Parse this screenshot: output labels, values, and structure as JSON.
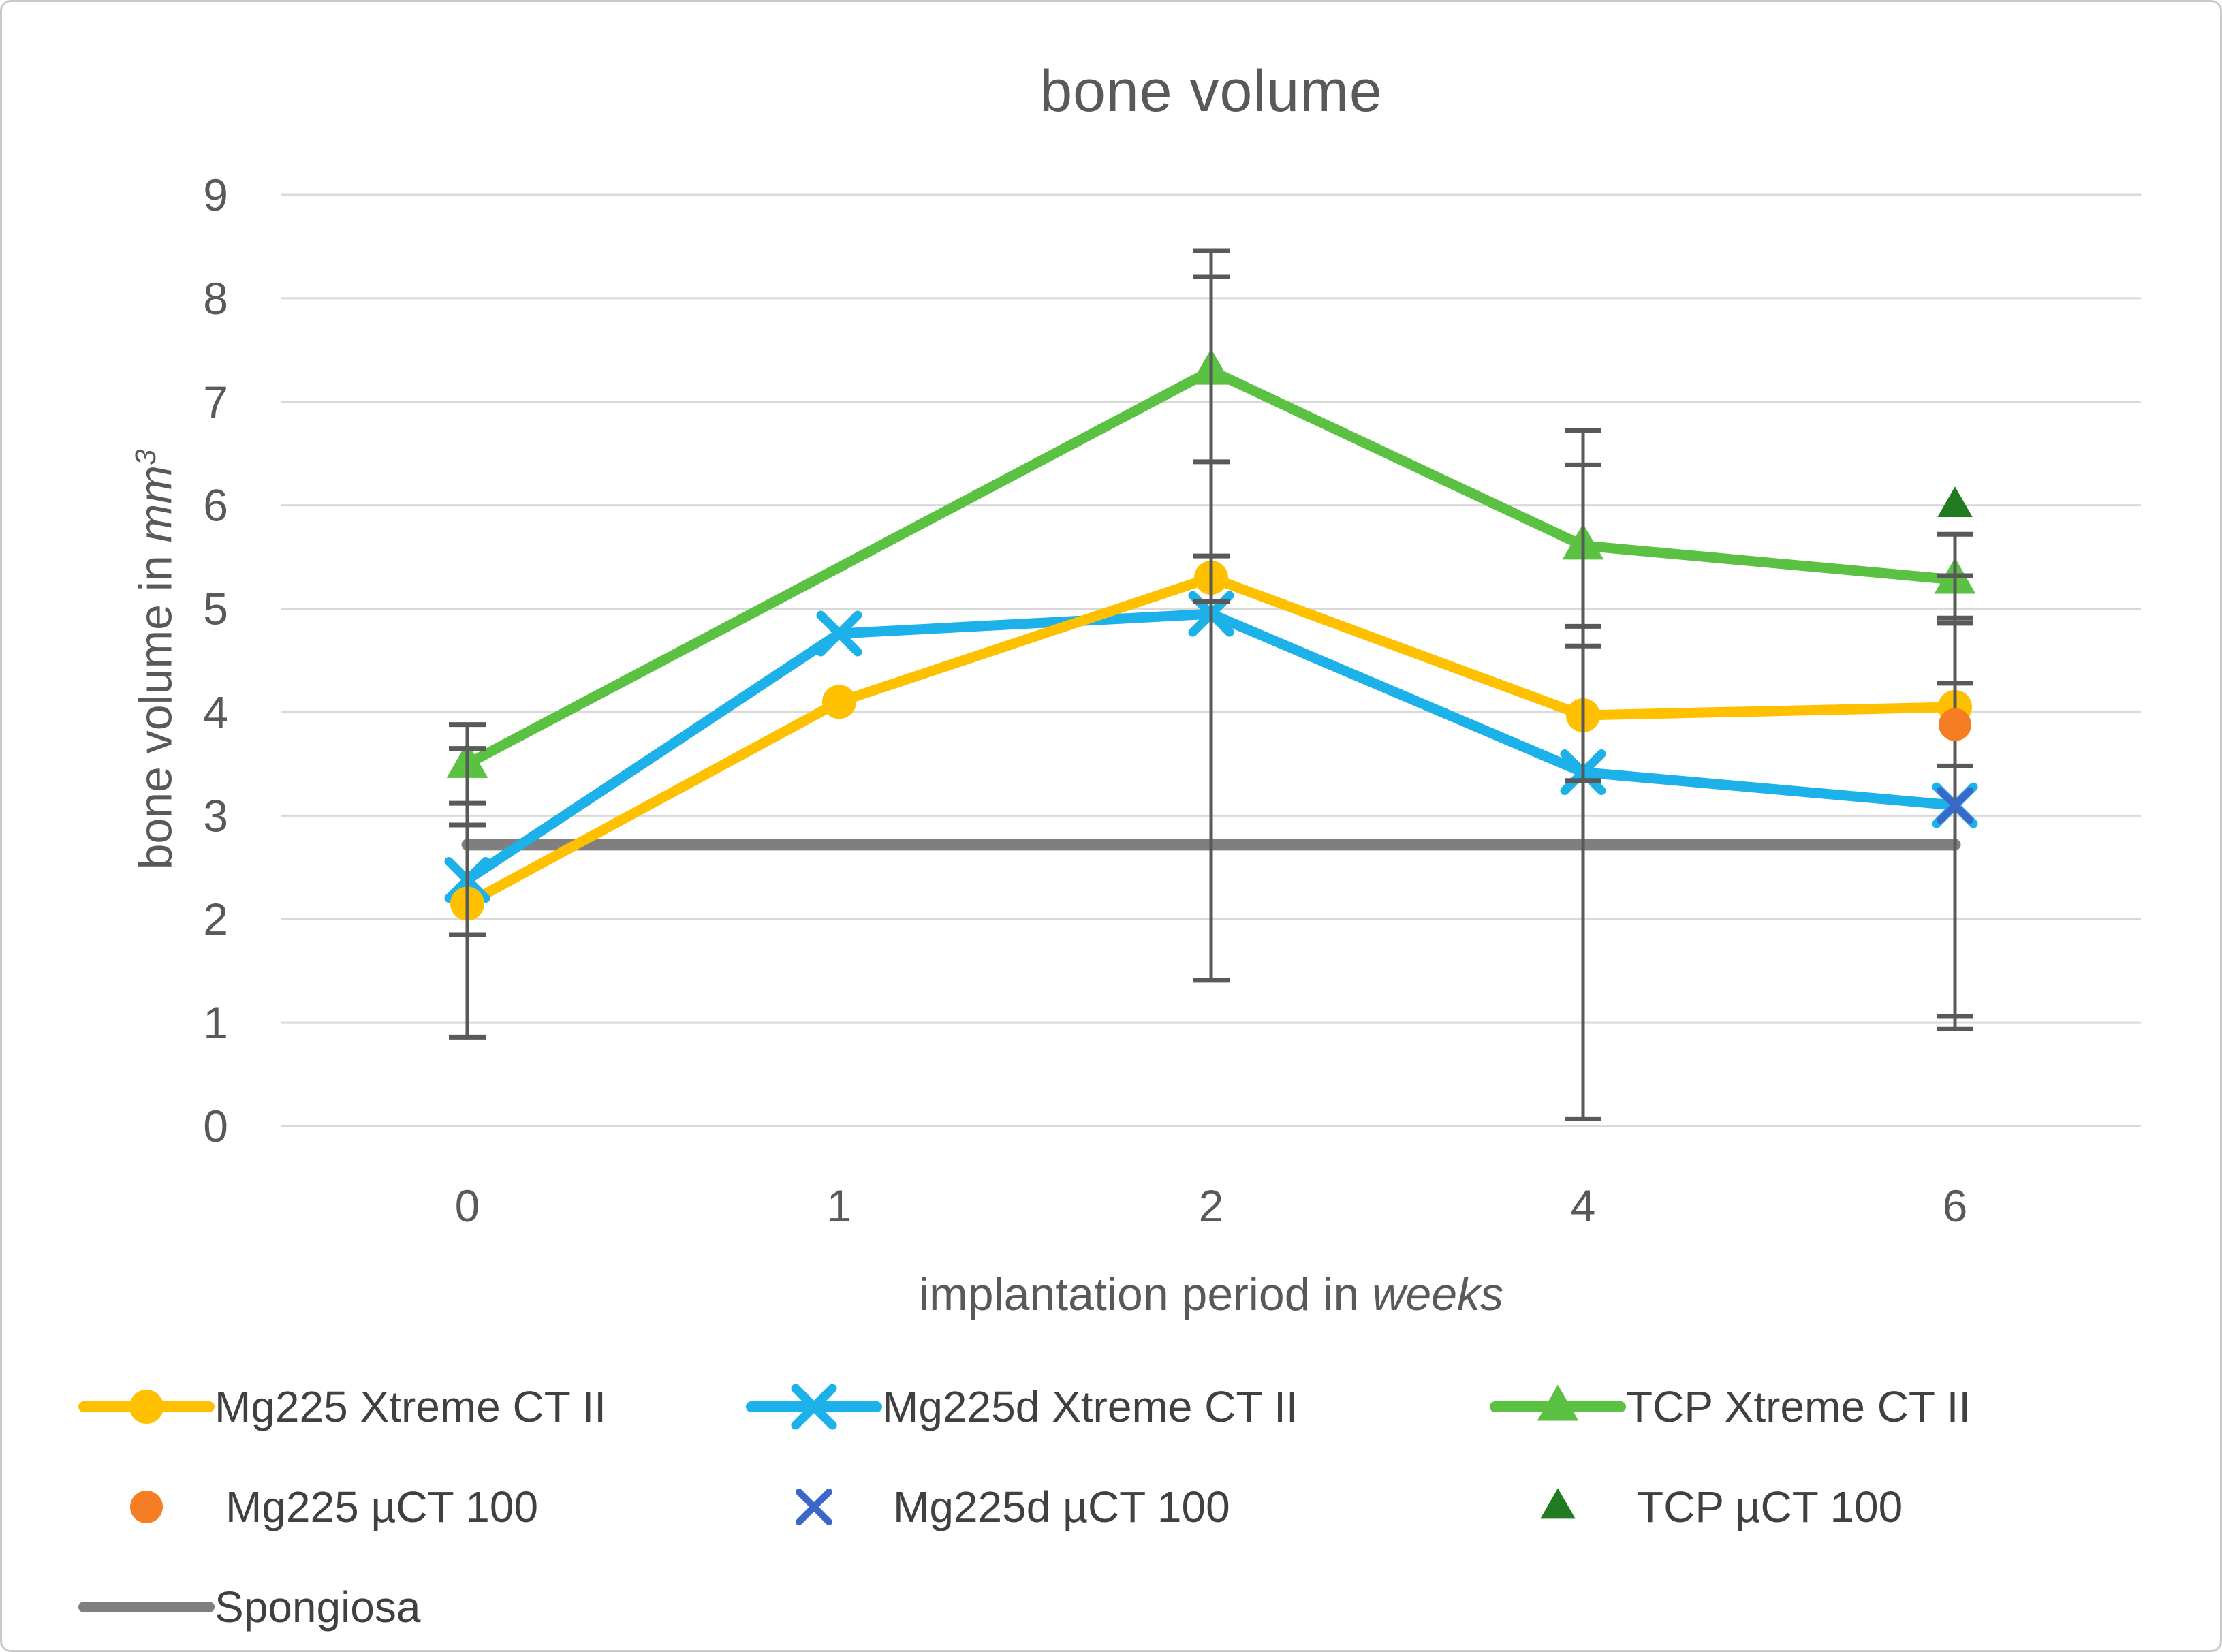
{
  "chart_data": {
    "type": "line",
    "title": "bone volume",
    "xlabel": "implantation period in weeks",
    "ylabel": "bone volume in mm³",
    "x_categories": [
      0,
      1,
      2,
      4,
      6
    ],
    "ylim": [
      0,
      9
    ],
    "y_ticks": [
      0,
      1,
      2,
      3,
      4,
      5,
      6,
      7,
      8,
      9
    ],
    "grid": true,
    "legend_position": "bottom",
    "series": [
      {
        "name": "Mg225 Xtreme CT II",
        "marker": "circle",
        "draw_line": true,
        "color_key": "mg225",
        "x": [
          0,
          1,
          2,
          4,
          6
        ],
        "y": [
          2.15,
          4.1,
          5.3,
          3.97,
          4.05
        ],
        "error_bars": [
          {
            "x": 0,
            "lo": 0.86,
            "hi": 3.65
          },
          {
            "x": 2,
            "lo": 5.07,
            "hi": 5.51
          },
          {
            "x": 4,
            "lo": 3.34,
            "hi": 4.64
          },
          {
            "x": 6,
            "lo": 1.06,
            "hi": 4.91
          }
        ]
      },
      {
        "name": "Mg225d Xtreme CT II",
        "marker": "x",
        "draw_line": true,
        "color_key": "mg225d",
        "x": [
          0,
          1,
          2,
          4,
          6
        ],
        "y": [
          2.38,
          4.76,
          4.95,
          3.42,
          3.1
        ],
        "error_bars": [
          {
            "x": 0,
            "lo": 1.85,
            "hi": 2.91
          },
          {
            "x": 2,
            "lo": 1.41,
            "hi": 8.46
          },
          {
            "x": 4,
            "lo": 0.07,
            "hi": 6.72
          },
          {
            "x": 6,
            "lo": 0.94,
            "hi": 5.32
          }
        ]
      },
      {
        "name": "TCP Xtreme CT II",
        "marker": "triangle",
        "draw_line": true,
        "color_key": "tcp",
        "x": [
          0,
          2,
          4,
          6
        ],
        "y": [
          3.5,
          7.3,
          5.61,
          5.28
        ],
        "error_bars": [
          {
            "x": 0,
            "lo": 3.12,
            "hi": 3.88
          },
          {
            "x": 2,
            "lo": 6.42,
            "hi": 8.21
          },
          {
            "x": 4,
            "lo": 4.83,
            "hi": 6.39
          },
          {
            "x": 6,
            "lo": 4.86,
            "hi": 5.72
          }
        ]
      },
      {
        "name": "Mg225 µCT 100",
        "marker": "circle",
        "draw_line": false,
        "color_key": "mg225_uct",
        "x": [
          6
        ],
        "y": [
          3.88
        ],
        "error_bars": [
          {
            "x": 6,
            "lo": 3.48,
            "hi": 4.28
          }
        ]
      },
      {
        "name": "Mg225d µCT 100",
        "marker": "x",
        "draw_line": false,
        "color_key": "mg225d_uct",
        "x": [
          6
        ],
        "y": [
          3.1
        ],
        "error_bars": []
      },
      {
        "name": "TCP µCT 100",
        "marker": "triangle",
        "draw_line": false,
        "color_key": "tcp_uct",
        "x": [
          6
        ],
        "y": [
          6.0
        ],
        "error_bars": []
      },
      {
        "name": "Spongiosa",
        "marker": "none",
        "draw_line": true,
        "color_key": "spongiosa",
        "x": [
          0,
          6
        ],
        "y": [
          2.72,
          2.72
        ],
        "error_bars": []
      }
    ]
  },
  "labels": {
    "xlabel_prefix": "implantation period in ",
    "xlabel_italic": "weeks",
    "ylabel_prefix": "bone volume in ",
    "ylabel_italic": "mm",
    "ylabel_sup": "3"
  },
  "colors": {
    "text": "#595959",
    "legend_text": "#404040",
    "gridline": "#D9D9D9",
    "error_bar": "#595959",
    "mg225": "#FFC000",
    "mg225d": "#1CB1E8",
    "tcp": "#5BC142",
    "mg225_uct": "#F57E25",
    "mg225d_uct": "#3A67C8",
    "tcp_uct": "#217B21",
    "spongiosa": "#7F7F7F"
  }
}
